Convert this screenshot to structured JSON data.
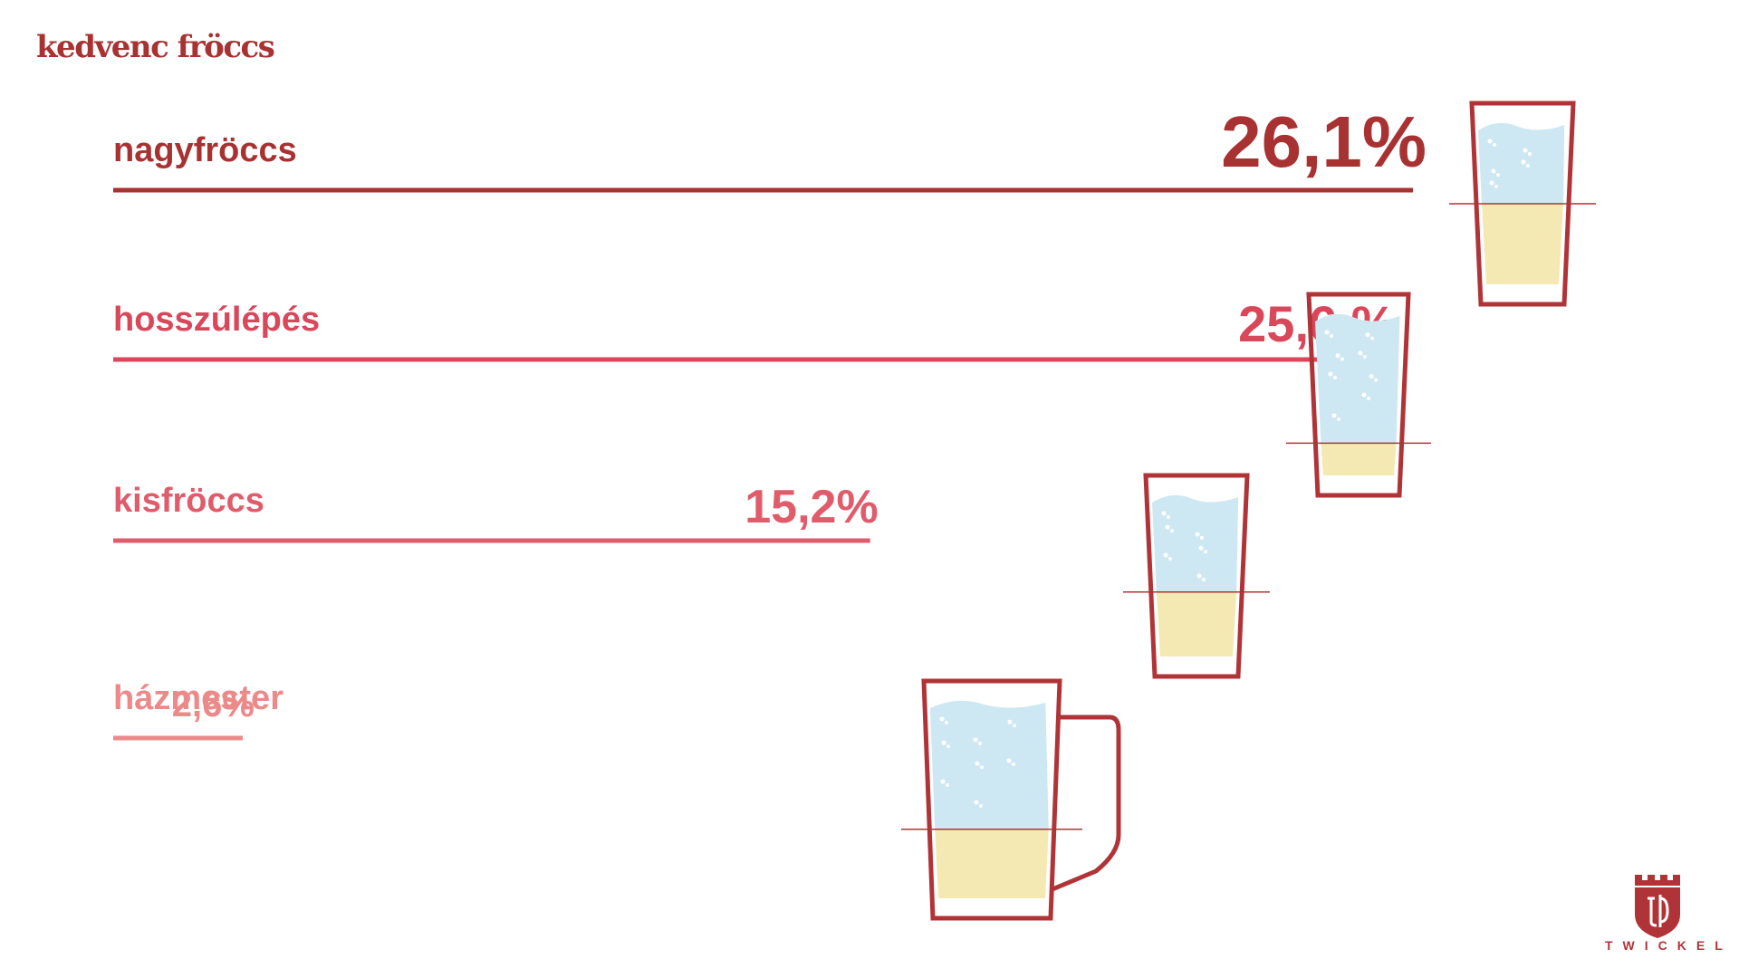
{
  "title": "kedvenc fröccs",
  "chart_data": {
    "type": "bar",
    "orientation": "horizontal",
    "categories": [
      "nagyfröccs",
      "hosszúlépés",
      "kisfröccs",
      "házmester"
    ],
    "values": [
      26.1,
      25.6,
      15.2,
      2.6
    ],
    "value_labels": [
      "26,1%",
      "25,6 %",
      "15,2%",
      "2,6%"
    ],
    "colors": [
      "#a83232",
      "#d9475a",
      "#e05c6b",
      "#ec8a8a"
    ],
    "glass_icons": [
      "tall-glass-icon",
      "tall-glass-icon",
      "short-glass-icon",
      "beer-mug-icon"
    ],
    "wine_fraction": [
      0.5,
      0.2,
      0.4,
      0.35
    ],
    "grid": false,
    "legend": "none"
  },
  "brand": {
    "name": "TWICKEL",
    "colors": {
      "outline": "#b03437",
      "water": "#cde8f2",
      "wine": "#f4e9b3",
      "bubble": "#ffffff"
    }
  }
}
